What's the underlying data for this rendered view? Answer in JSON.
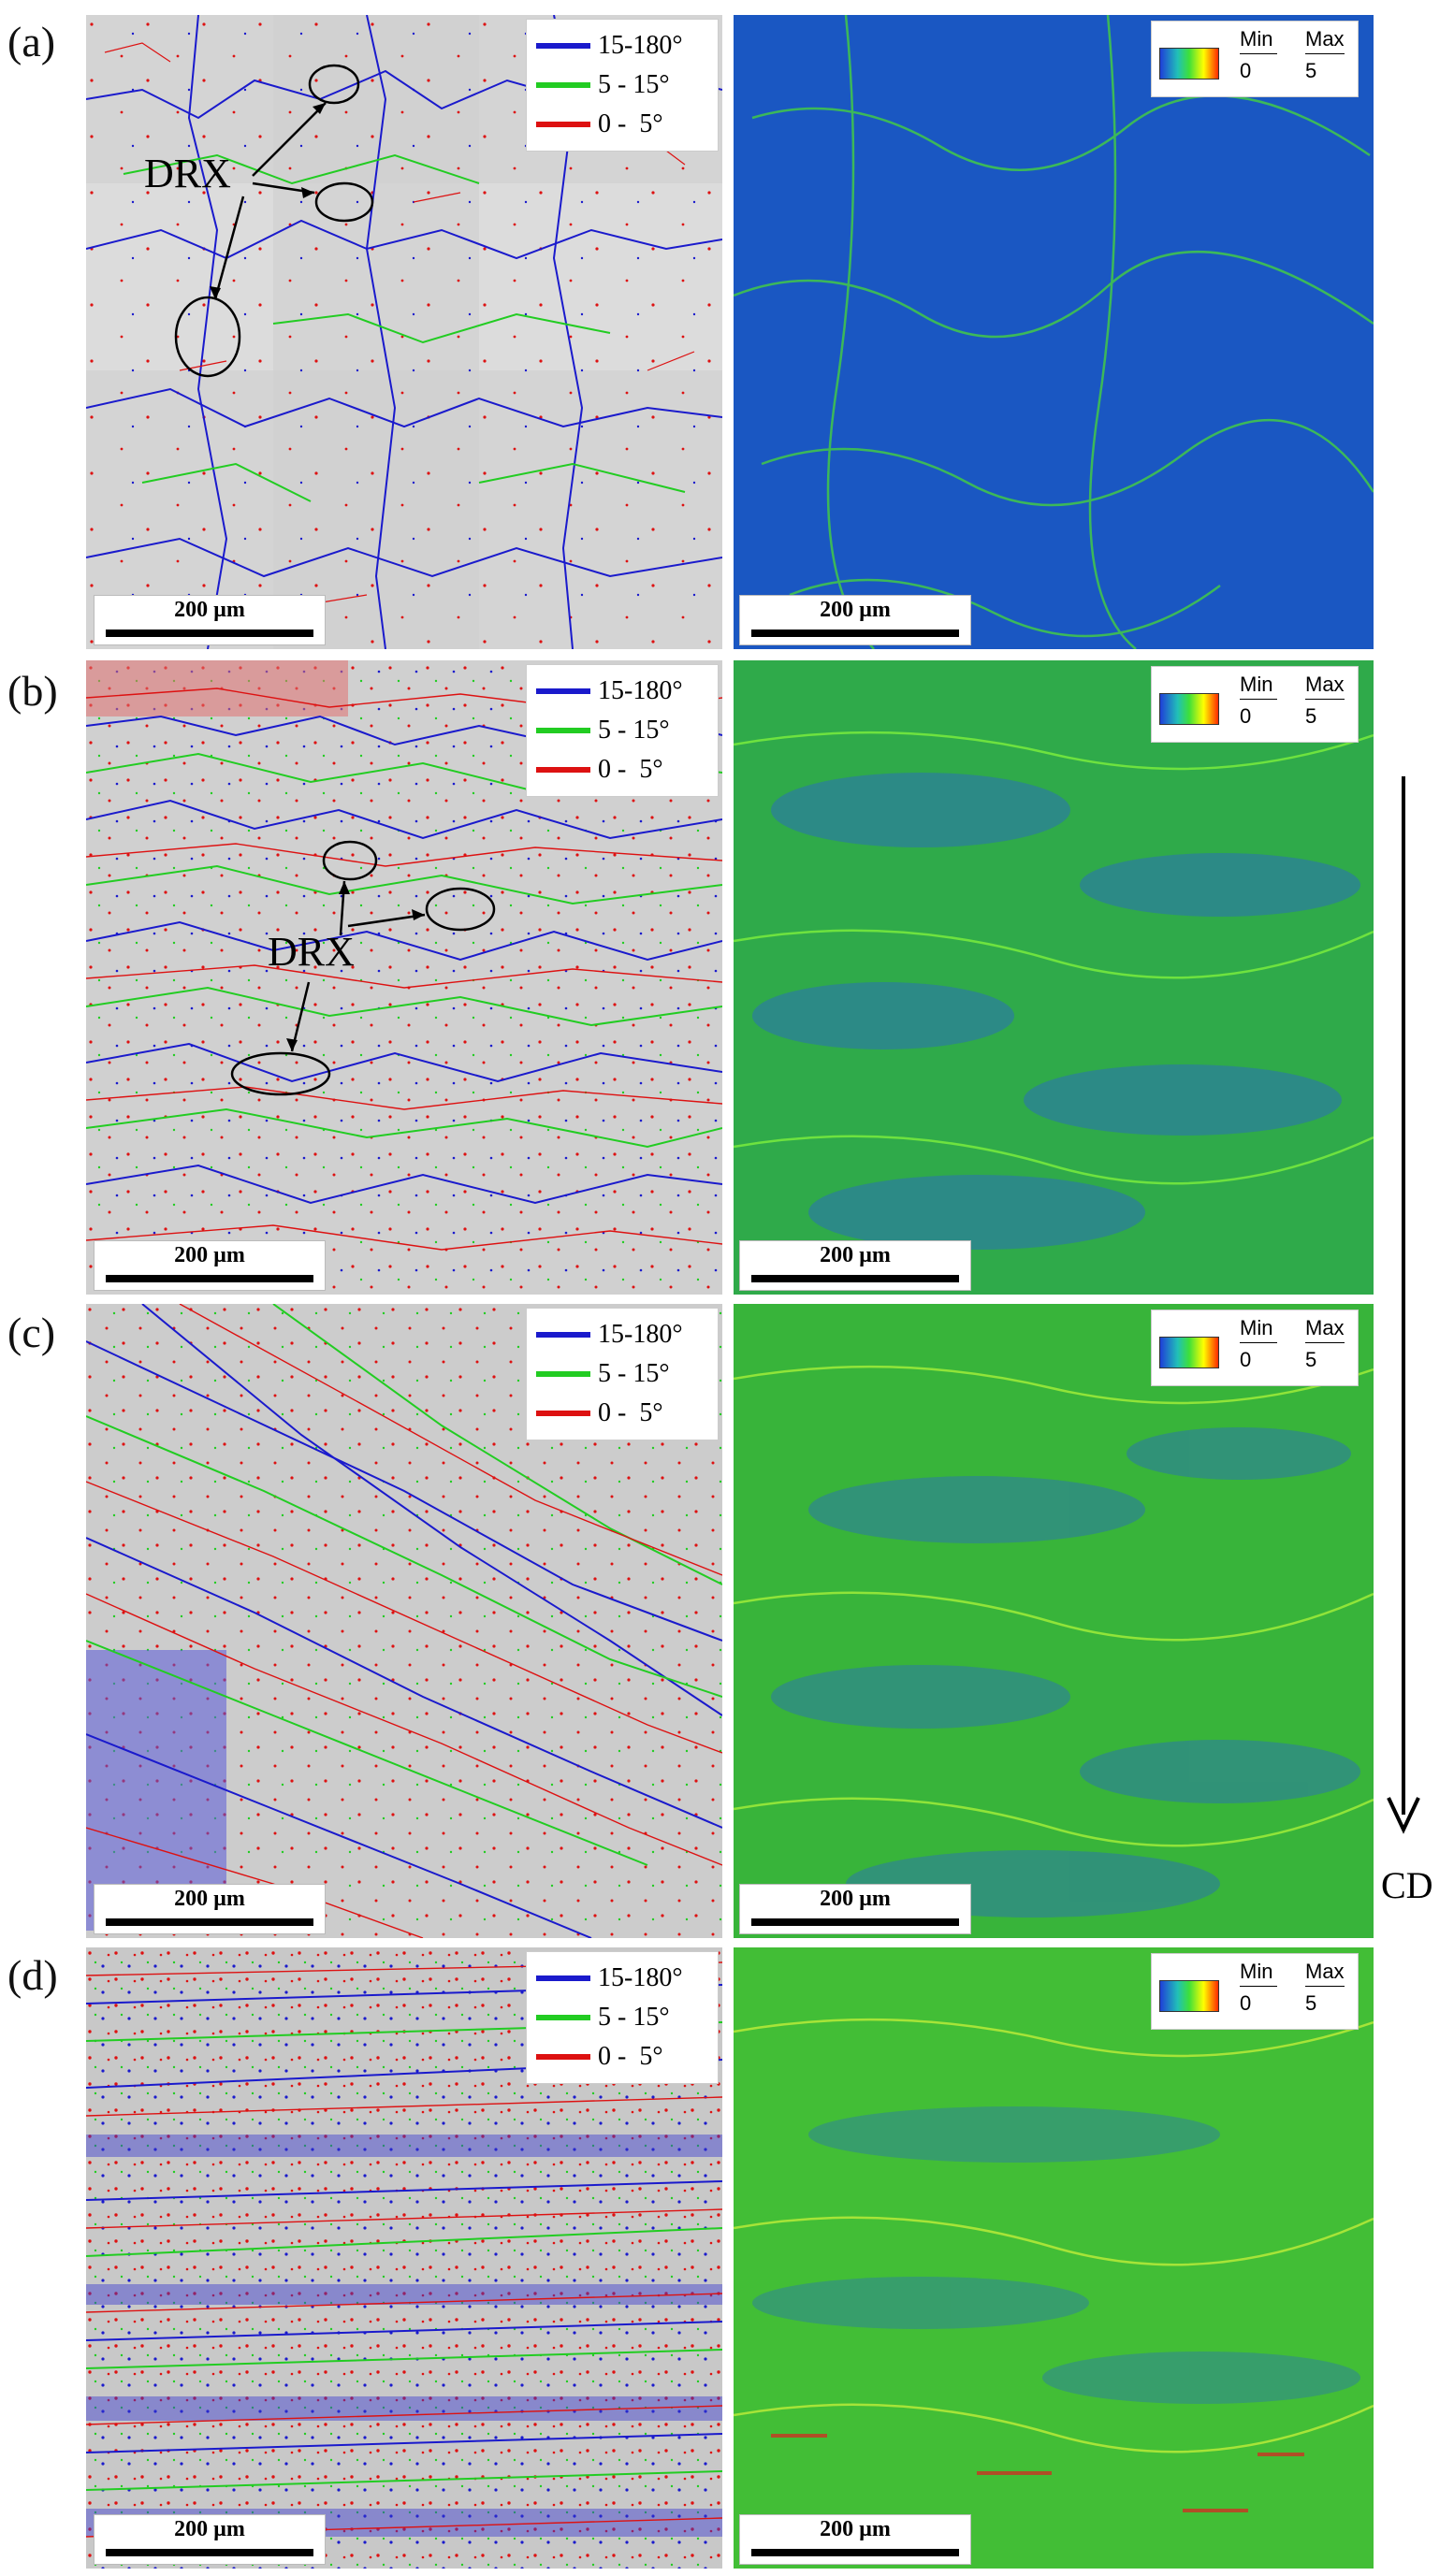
{
  "panel_letters": [
    "(a)",
    "(b)",
    "(c)",
    "(d)"
  ],
  "scale_bar_label": "200 µm",
  "gb_legend": [
    {
      "label": "15-180°",
      "color": "#1a1acc"
    },
    {
      "label": "5 - 15°",
      "color": "#22cc22"
    },
    {
      "label": "0 -  5°",
      "color": "#dd1111"
    }
  ],
  "kam_legend": {
    "min_label": "Min",
    "max_label": "Max",
    "min_value": "0",
    "max_value": "5"
  },
  "drx_label": "DRX",
  "direction_label": "CD",
  "colors": {
    "blue_map": "#1850c8",
    "green_map": "#30c030",
    "gray_background": "#d2d2d2"
  }
}
